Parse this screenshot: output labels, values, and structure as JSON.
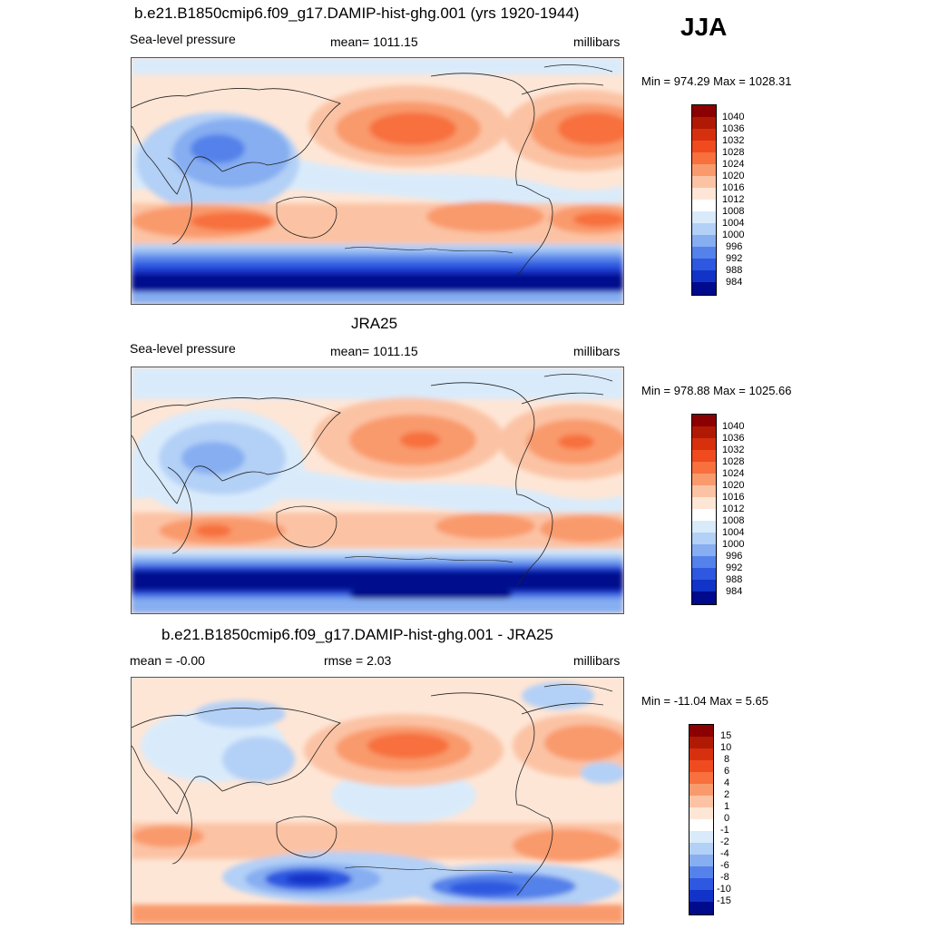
{
  "season": "JJA",
  "panels": [
    {
      "title": "b.e21.B1850cmip6.f09_g17.DAMIP-hist-ghg.001 (yrs 1920-1944)",
      "left": "Sea-level pressure",
      "center": "mean= 1011.15",
      "right": "millibars",
      "minmax": "Min = 974.29 Max = 1028.31",
      "colorbar": {
        "labels": [
          "1040",
          "1036",
          "1032",
          "1028",
          "1024",
          "1020",
          "1016",
          "1012",
          "1008",
          "1004",
          "1000",
          "996",
          "992",
          "988",
          "984"
        ],
        "colors": [
          "#8b0000",
          "#b01a05",
          "#d7300f",
          "#ef4b1f",
          "#f7703e",
          "#f99a6c",
          "#fbc3a4",
          "#fee6d6",
          "#ffffff",
          "#d9ebfb",
          "#b3d0f6",
          "#86aef1",
          "#5582ea",
          "#2e58e0",
          "#1233c8",
          "#000a8c"
        ]
      }
    },
    {
      "title": "JRA25",
      "left": "Sea-level pressure",
      "center": "mean= 1011.15",
      "right": "millibars",
      "minmax": "Min = 978.88 Max = 1025.66",
      "colorbar": {
        "labels": [
          "1040",
          "1036",
          "1032",
          "1028",
          "1024",
          "1020",
          "1016",
          "1012",
          "1008",
          "1004",
          "1000",
          "996",
          "992",
          "988",
          "984"
        ],
        "colors": [
          "#8b0000",
          "#b01a05",
          "#d7300f",
          "#ef4b1f",
          "#f7703e",
          "#f99a6c",
          "#fbc3a4",
          "#fee6d6",
          "#ffffff",
          "#d9ebfb",
          "#b3d0f6",
          "#86aef1",
          "#5582ea",
          "#2e58e0",
          "#1233c8",
          "#000a8c"
        ]
      }
    },
    {
      "title": "b.e21.B1850cmip6.f09_g17.DAMIP-hist-ghg.001 - JRA25",
      "left": "mean =  -0.00",
      "center": "rmse =    2.03",
      "right": "millibars",
      "minmax": "Min = -11.04 Max =   5.65",
      "colorbar": {
        "labels": [
          "15",
          "10",
          "8",
          "6",
          "4",
          "2",
          "1",
          "0",
          "-1",
          "-2",
          "-4",
          "-6",
          "-8",
          "-10",
          "-15"
        ],
        "colors": [
          "#8b0000",
          "#b01a05",
          "#d7300f",
          "#ef4b1f",
          "#f7703e",
          "#f99a6c",
          "#fbc3a4",
          "#fee6d6",
          "#ffffff",
          "#d9ebfb",
          "#b3d0f6",
          "#86aef1",
          "#5582ea",
          "#2e58e0",
          "#1233c8",
          "#000a8c"
        ]
      }
    }
  ]
}
